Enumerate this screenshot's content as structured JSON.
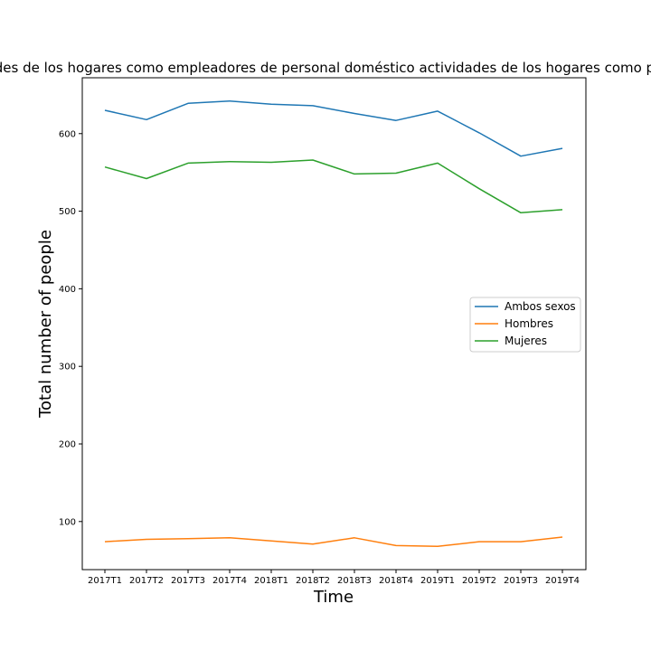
{
  "chart_data": {
    "type": "line",
    "title": "Actividades de los hogares como empleadores de personal doméstico actividades de los hogares como productores",
    "xlabel": "Time",
    "ylabel": "Total number of people",
    "categories": [
      "2017T1",
      "2017T2",
      "2017T3",
      "2017T4",
      "2018T1",
      "2018T2",
      "2018T3",
      "2018T4",
      "2019T1",
      "2019T2",
      "2019T3",
      "2019T4"
    ],
    "yticks": [
      100,
      200,
      300,
      400,
      500,
      600
    ],
    "ylim": [
      38,
      672
    ],
    "grid": false,
    "legend_position": "center-right",
    "series": [
      {
        "name": "Ambos sexos",
        "color": "#1f77b4",
        "values": [
          630,
          618,
          639,
          642,
          638,
          636,
          626,
          617,
          629,
          601,
          571,
          581
        ]
      },
      {
        "name": "Hombres",
        "color": "#ff7f0e",
        "values": [
          74,
          77,
          78,
          79,
          75,
          71,
          79,
          69,
          68,
          74,
          74,
          80
        ]
      },
      {
        "name": "Mujeres",
        "color": "#2ca02c",
        "values": [
          557,
          542,
          562,
          564,
          563,
          566,
          548,
          549,
          562,
          529,
          498,
          502
        ]
      }
    ]
  }
}
